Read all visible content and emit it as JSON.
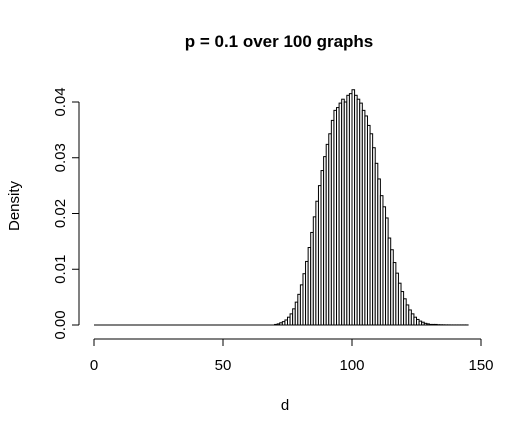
{
  "chart_data": {
    "type": "bar",
    "title": "p = 0.1 over 100 graphs",
    "xlabel": "d",
    "ylabel": "Density",
    "xlim": [
      0,
      145
    ],
    "ylim": [
      0,
      0.04
    ],
    "bin_width": 1,
    "x_ticks": [
      0,
      50,
      100,
      150
    ],
    "x_tick_labels": [
      "0",
      "50",
      "100",
      "150"
    ],
    "y_ticks": [
      0,
      0.01,
      0.02,
      0.03,
      0.04
    ],
    "y_tick_labels": [
      "0.00",
      "0.01",
      "0.02",
      "0.03",
      "0.04"
    ],
    "bin_starts": [
      70,
      71,
      72,
      73,
      74,
      75,
      76,
      77,
      78,
      79,
      80,
      81,
      82,
      83,
      84,
      85,
      86,
      87,
      88,
      89,
      90,
      91,
      92,
      93,
      94,
      95,
      96,
      97,
      98,
      99,
      100,
      101,
      102,
      103,
      104,
      105,
      106,
      107,
      108,
      109,
      110,
      111,
      112,
      113,
      114,
      115,
      116,
      117,
      118,
      119,
      120,
      121,
      122,
      123,
      124,
      125,
      126,
      127,
      128,
      129,
      130,
      131,
      132,
      133,
      134,
      135,
      136,
      137,
      138,
      139,
      140,
      141,
      142,
      143,
      144
    ],
    "values": [
      0.0001,
      0.0002,
      0.0004,
      0.0006,
      0.0009,
      0.0014,
      0.002,
      0.0029,
      0.0041,
      0.0055,
      0.0072,
      0.0092,
      0.0114,
      0.0139,
      0.0166,
      0.0194,
      0.0222,
      0.025,
      0.0277,
      0.0302,
      0.0324,
      0.0343,
      0.0367,
      0.0385,
      0.039,
      0.0398,
      0.0405,
      0.04,
      0.0412,
      0.0415,
      0.0422,
      0.0412,
      0.0405,
      0.0398,
      0.0385,
      0.0375,
      0.0358,
      0.0343,
      0.0318,
      0.029,
      0.0262,
      0.0232,
      0.0212,
      0.0192,
      0.0156,
      0.0135,
      0.0112,
      0.0093,
      0.0075,
      0.006,
      0.0047,
      0.0036,
      0.0027,
      0.002,
      0.0014,
      0.001,
      0.0007,
      0.0005,
      0.0003,
      0.0002,
      0.0001,
      0.0001,
      0.0001,
      5e-05,
      4e-05,
      3e-05,
      2e-05,
      2e-05,
      1e-05,
      1e-05,
      1e-05,
      1e-05,
      1e-05,
      1e-05,
      1e-05
    ]
  }
}
